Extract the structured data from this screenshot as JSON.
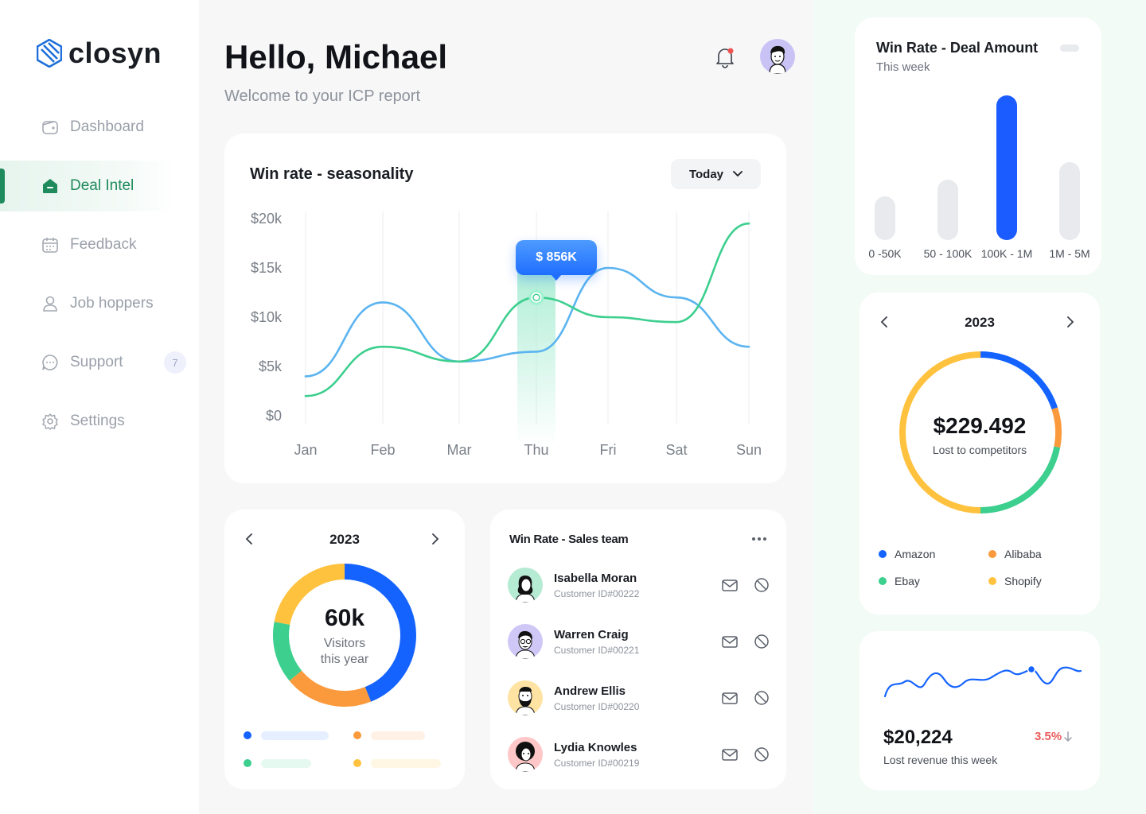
{
  "app": {
    "logo_text": "closyn"
  },
  "sidebar": {
    "items": [
      {
        "label": "Dashboard",
        "icon": "wallet-icon"
      },
      {
        "label": "Deal Intel",
        "icon": "home-icon",
        "active": true
      },
      {
        "label": "Feedback",
        "icon": "calendar-icon"
      },
      {
        "label": "Job hoppers",
        "icon": "user-icon"
      },
      {
        "label": "Support",
        "icon": "chat-icon",
        "badge": "7"
      },
      {
        "label": "Settings",
        "icon": "gear-icon"
      }
    ]
  },
  "header": {
    "greeting": "Hello, Michael",
    "subtitle": "Welcome to your ICP report"
  },
  "season": {
    "title": "Win rate - seasonality",
    "dropdown_value": "Today",
    "tooltip": "$ 856K",
    "highlight_index": 3
  },
  "chart_data": {
    "type": "line",
    "categories": [
      "Jan",
      "Feb",
      "Mar",
      "Thu",
      "Fri",
      "Sat",
      "Sun"
    ],
    "y_tick_labels": [
      "$20k",
      "$15k",
      "$10k",
      "$5k",
      "$0"
    ],
    "ylim": [
      0,
      20
    ],
    "series": [
      {
        "color": "#5bb4f0",
        "values": [
          4,
          11.5,
          5.5,
          6.5,
          15,
          12,
          7
        ]
      },
      {
        "color": "#3ccf8e",
        "values": [
          2,
          7,
          5.5,
          12,
          10,
          9.5,
          19.5
        ]
      }
    ]
  },
  "visitors": {
    "year": "2023",
    "value": "60k",
    "label_line1": "Visitors",
    "label_line2": "this year",
    "segments": [
      {
        "color": "#1463ff",
        "fraction": 0.44
      },
      {
        "color": "#fb9a3c",
        "fraction": 0.2
      },
      {
        "color": "#3ccf8e",
        "fraction": 0.14
      },
      {
        "color": "#ffc23e",
        "fraction": 0.22
      }
    ]
  },
  "team": {
    "title": "Win Rate - Sales team",
    "members": [
      {
        "name": "Isabella Moran",
        "id": "Customer ID#00222",
        "bg": "#b5ead3"
      },
      {
        "name": "Warren Craig",
        "id": "Customer ID#00221",
        "bg": "#cfc8f7"
      },
      {
        "name": "Andrew Ellis",
        "id": "Customer ID#00220",
        "bg": "#ffe3a3"
      },
      {
        "name": "Lydia Knowles",
        "id": "Customer ID#00219",
        "bg": "#ffc7c7"
      }
    ]
  },
  "deal": {
    "title": "Win Rate - Deal Amount",
    "subtitle": "This week",
    "bars": [
      {
        "label": "0 -50K",
        "level": 0.3,
        "highlight": false
      },
      {
        "label": "50 - 100K",
        "level": 0.42,
        "highlight": false
      },
      {
        "label": "100K - 1M",
        "level": 1.0,
        "highlight": true
      },
      {
        "label": "1M - 5M",
        "level": 0.54,
        "highlight": false
      }
    ]
  },
  "lost": {
    "year": "2023",
    "value": "$229.492",
    "label": "Lost to competitors",
    "segments": [
      {
        "name": "Amazon",
        "color": "#1463ff",
        "fraction": 0.2
      },
      {
        "name": "Alibaba",
        "color": "#fb9a3c",
        "fraction": 0.08
      },
      {
        "name": "Ebay",
        "color": "#3ccf8e",
        "fraction": 0.22
      },
      {
        "name": "Shopify",
        "color": "#ffc23e",
        "fraction": 0.5
      }
    ]
  },
  "revenue": {
    "value": "$20,224",
    "label": "Lost revenue this week",
    "change": "3.5%"
  }
}
